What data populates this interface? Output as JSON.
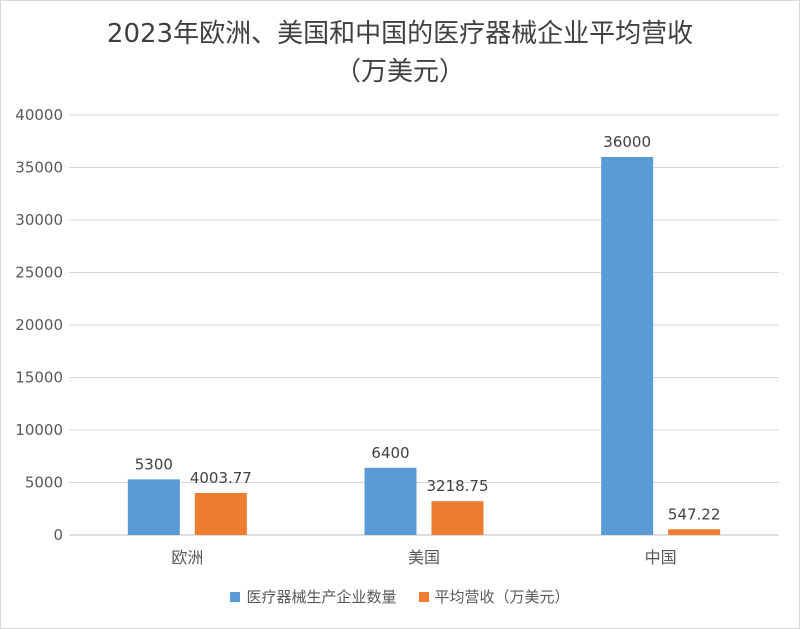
{
  "chart_data": {
    "type": "bar",
    "title_line1": "2023年欧洲、美国和中国的医疗器械企业平均营收",
    "title_line2": "（万美元）",
    "categories": [
      "欧洲",
      "美国",
      "中国"
    ],
    "series": [
      {
        "name": "医疗器械生产企业数量",
        "values": [
          5300,
          6400,
          36000
        ],
        "labels": [
          "5300",
          "6400",
          "36000"
        ],
        "color": "#5b9bd5"
      },
      {
        "name": "平均营收（万美元）",
        "values": [
          4003.77,
          3218.75,
          547.22
        ],
        "labels": [
          "4003.77",
          "3218.75",
          "547.22"
        ],
        "color": "#ed7d31"
      }
    ],
    "ylim": [
      0,
      40000
    ],
    "yticks": [
      "0",
      "5000",
      "10000",
      "15000",
      "20000",
      "25000",
      "30000",
      "35000",
      "40000"
    ],
    "grid": true,
    "legend_position": "bottom"
  }
}
